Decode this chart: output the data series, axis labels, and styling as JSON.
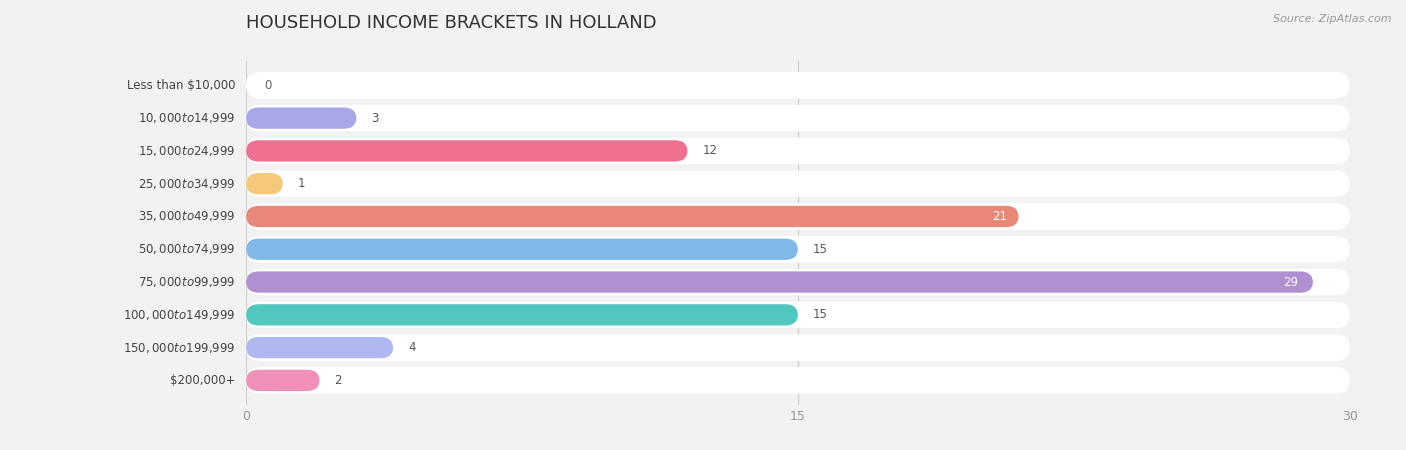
{
  "title": "HOUSEHOLD INCOME BRACKETS IN HOLLAND",
  "source": "Source: ZipAtlas.com",
  "categories": [
    "Less than $10,000",
    "$10,000 to $14,999",
    "$15,000 to $24,999",
    "$25,000 to $34,999",
    "$35,000 to $49,999",
    "$50,000 to $74,999",
    "$75,000 to $99,999",
    "$100,000 to $149,999",
    "$150,000 to $199,999",
    "$200,000+"
  ],
  "values": [
    0,
    3,
    12,
    1,
    21,
    15,
    29,
    15,
    4,
    2
  ],
  "bar_colors": [
    "#5ecfcf",
    "#a8a8e8",
    "#f07090",
    "#f5c87a",
    "#e88878",
    "#80b8e8",
    "#b090d0",
    "#50c8c0",
    "#b0b8f0",
    "#f090b8"
  ],
  "xlim": [
    0,
    30
  ],
  "xticks": [
    0,
    15,
    30
  ],
  "bg_color": "#f2f2f2",
  "title_fontsize": 13,
  "label_fontsize": 8.5,
  "value_fontsize": 8.5,
  "bar_height": 0.65
}
